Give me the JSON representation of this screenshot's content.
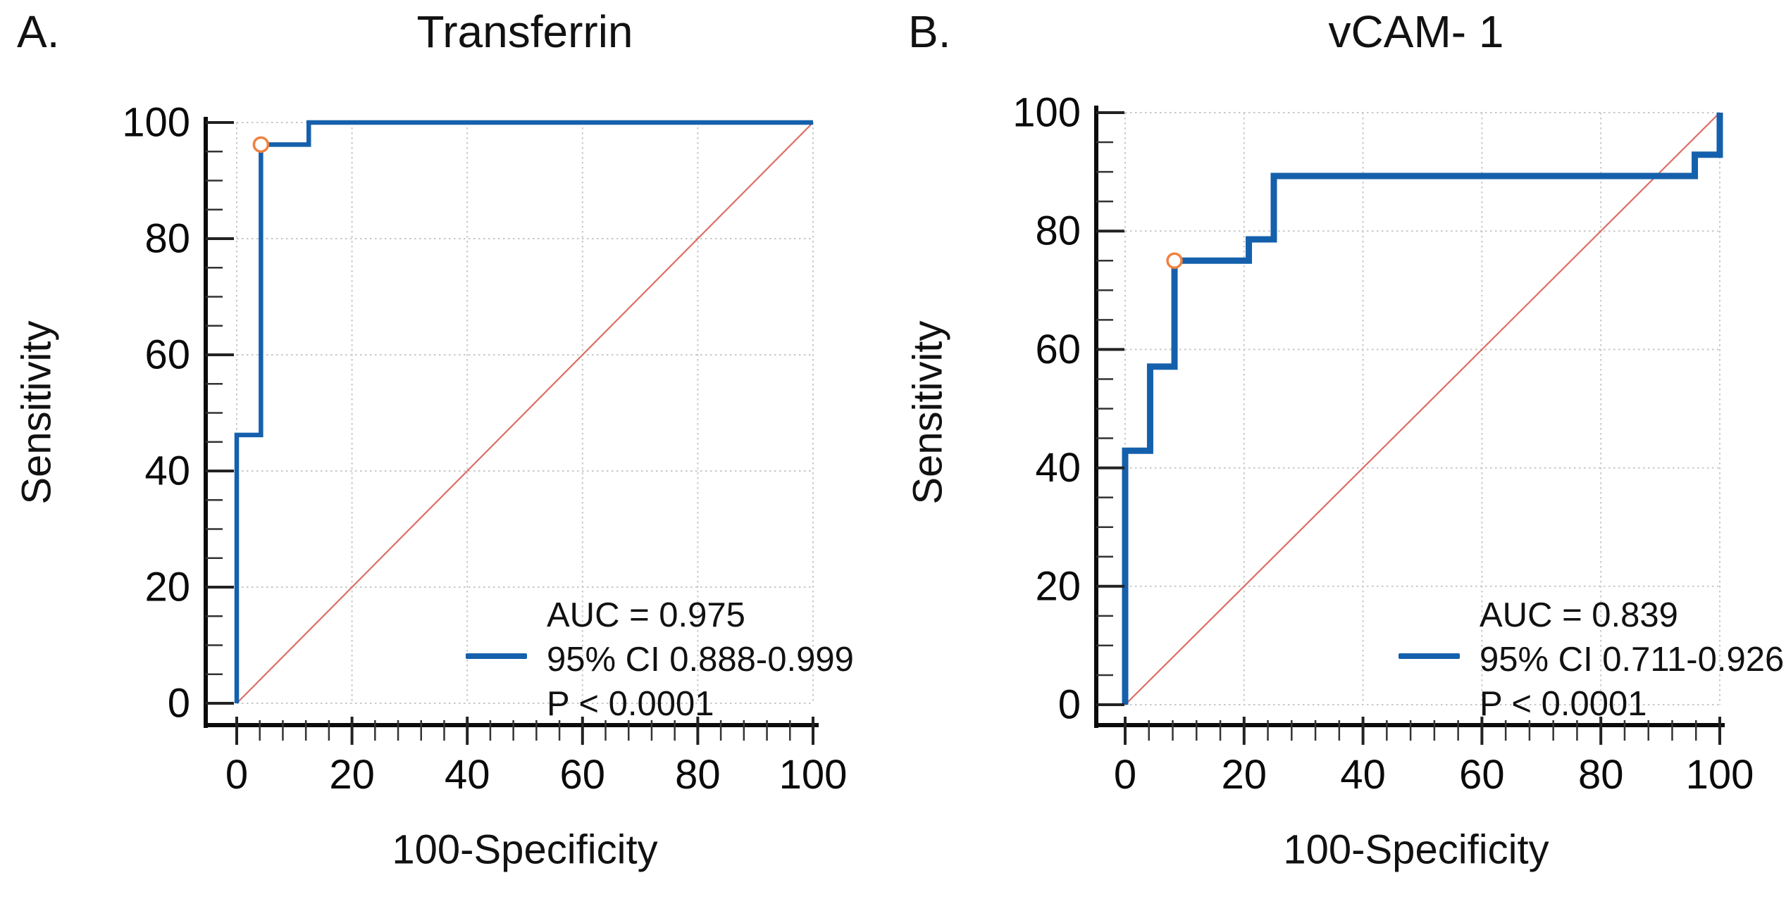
{
  "figure_caption": "ROC curves",
  "accent_colors": {
    "roc_blue": "#1560ac",
    "reference_red": "#d95f55",
    "marker_orange": "#f0813f",
    "grid_gray": "#c7c7c7",
    "axis_black": "#0a0a0a"
  },
  "chart_data": [
    {
      "type": "line",
      "subtype": "roc-curve",
      "panel_label": "A.",
      "title": "Transferrin",
      "xlabel": "100-Specificity",
      "ylabel": "Sensitivity",
      "xlim": [
        0,
        100
      ],
      "ylim": [
        0,
        100
      ],
      "xticks": [
        0,
        20,
        40,
        60,
        80,
        100
      ],
      "yticks": [
        0,
        20,
        40,
        60,
        80,
        100
      ],
      "x_minor_tick_step": 4,
      "y_minor_tick_step": 5,
      "grid": "dotted",
      "legend_position": "lower-right",
      "auc": 0.975,
      "ci_low": 0.888,
      "ci_high": 0.999,
      "p": "< 0.0001",
      "roc_curve": {
        "name": "ROC curve",
        "color": "#1560ac",
        "points": [
          [
            0,
            0
          ],
          [
            0,
            46.2
          ],
          [
            4.2,
            46.2
          ],
          [
            4.2,
            96.2
          ],
          [
            12.5,
            96.2
          ],
          [
            12.5,
            100
          ],
          [
            100,
            100
          ]
        ]
      },
      "reference_line": {
        "name": "chance diagonal",
        "color": "#d95f55",
        "points": [
          [
            0,
            0
          ],
          [
            100,
            100
          ]
        ]
      },
      "operating_point": {
        "x": 4.2,
        "y": 96.2,
        "marker": "open-circle",
        "color": "#f0813f"
      },
      "legend": {
        "auc": "AUC = 0.975",
        "ci": "95% CI 0.888-0.999",
        "p": "P < 0.0001"
      }
    },
    {
      "type": "line",
      "subtype": "roc-curve",
      "panel_label": "B.",
      "title": "vCAM- 1",
      "xlabel": "100-Specificity",
      "ylabel": "Sensitivity",
      "xlim": [
        0,
        100
      ],
      "ylim": [
        0,
        100
      ],
      "xticks": [
        0,
        20,
        40,
        60,
        80,
        100
      ],
      "yticks": [
        0,
        20,
        40,
        60,
        80,
        100
      ],
      "x_minor_tick_step": 4,
      "y_minor_tick_step": 5,
      "grid": "dotted",
      "legend_position": "lower-right",
      "auc": 0.839,
      "ci_low": 0.711,
      "ci_high": 0.926,
      "p": "< 0.0001",
      "roc_curve": {
        "name": "ROC curve",
        "color": "#1560ac",
        "points": [
          [
            0,
            0
          ],
          [
            0,
            42.9
          ],
          [
            4.2,
            42.9
          ],
          [
            4.2,
            57.1
          ],
          [
            8.3,
            57.1
          ],
          [
            8.3,
            75
          ],
          [
            20.8,
            75
          ],
          [
            20.8,
            78.6
          ],
          [
            25,
            78.6
          ],
          [
            25,
            89.3
          ],
          [
            95.8,
            89.3
          ],
          [
            95.8,
            92.9
          ],
          [
            100,
            92.9
          ],
          [
            100,
            100
          ]
        ]
      },
      "reference_line": {
        "name": "chance diagonal",
        "color": "#d95f55",
        "points": [
          [
            0,
            0
          ],
          [
            100,
            100
          ]
        ]
      },
      "operating_point": {
        "x": 8.3,
        "y": 75,
        "marker": "open-circle",
        "color": "#f0813f"
      },
      "legend": {
        "auc": "AUC = 0.839",
        "ci": "95% CI 0.711-0.926",
        "p": "P < 0.0001"
      }
    }
  ]
}
